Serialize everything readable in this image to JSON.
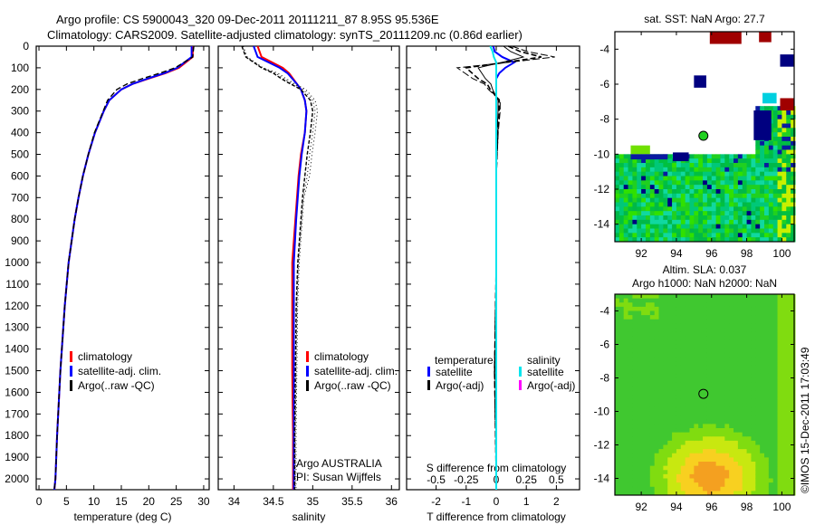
{
  "title_line1": "Argo profile: CS 5900043_320 09-Dec-2011 20111211_87 8.95S 95.536E",
  "title_line2": "Climatology: CARS2009. Satellite-adjusted climatology: synTS_20111209.nc (0.86d earlier)",
  "side_stamp": "©IMOS 15-Dec-2011 17:03:49",
  "colors": {
    "climatology": "#ff0000",
    "satellite": "#0000ff",
    "argo": "#000000",
    "sal_satellite": "#00e5ee",
    "sal_argo": "#ff00ff"
  },
  "chart_data": [
    {
      "type": "line",
      "xlabel": "temperature (deg C)",
      "xlim": [
        -0.5,
        31
      ],
      "xticks": [
        "0",
        "5",
        "10",
        "15",
        "20",
        "25",
        "30"
      ],
      "ylim": [
        2050,
        0
      ],
      "yticks": [
        "0",
        "100",
        "200",
        "300",
        "400",
        "500",
        "600",
        "700",
        "800",
        "900",
        "1000",
        "1100",
        "1200",
        "1300",
        "1400",
        "1500",
        "1600",
        "1700",
        "1800",
        "1900",
        "2000"
      ],
      "depth": [
        0,
        50,
        100,
        125,
        150,
        175,
        200,
        250,
        300,
        400,
        500,
        600,
        700,
        800,
        1000,
        1200,
        1500,
        1800,
        2000,
        2050
      ],
      "series": [
        {
          "name": "climatology",
          "values": [
            28,
            28,
            25.5,
            23,
            20,
            17,
            15,
            12.8,
            11.8,
            10.2,
            9,
            8,
            7.2,
            6.5,
            5.4,
            4.7,
            3.9,
            3.3,
            3.0,
            2.8
          ]
        },
        {
          "name": "satellite-adj. clim.",
          "values": [
            27.8,
            27.8,
            25.2,
            22.8,
            19.8,
            17,
            15,
            12.8,
            11.8,
            10.2,
            9,
            8,
            7.2,
            6.5,
            5.4,
            4.7,
            3.9,
            3.3,
            3.0,
            2.8
          ]
        },
        {
          "name": "Argo(..raw -QC)",
          "values": [
            28.2,
            28,
            24.8,
            22,
            18.8,
            16,
            14.2,
            12.5,
            11.7,
            10.1,
            9,
            8,
            7.2,
            6.5,
            5.4,
            4.7,
            3.9,
            3.3,
            3.0,
            2.8
          ]
        }
      ],
      "legend": [
        "climatology",
        "satellite-adj. clim.",
        "Argo(..raw -QC)"
      ]
    },
    {
      "type": "line",
      "xlabel": "salinity",
      "xlim": [
        33.8,
        36.1
      ],
      "xticks": [
        "34",
        "34.5",
        "35",
        "35.5",
        "36"
      ],
      "ylim": [
        2050,
        0
      ],
      "depth": [
        0,
        50,
        100,
        125,
        150,
        175,
        200,
        250,
        300,
        400,
        500,
        600,
        700,
        800,
        1000,
        1200,
        1500,
        1800,
        2000,
        2050
      ],
      "series": [
        {
          "name": "climatology",
          "values": [
            34.3,
            34.35,
            34.62,
            34.7,
            34.75,
            34.8,
            34.85,
            34.9,
            34.92,
            34.9,
            34.85,
            34.82,
            34.8,
            34.78,
            34.74,
            34.74,
            34.74,
            34.75,
            34.75,
            34.75
          ]
        },
        {
          "name": "satellite-adj. clim.",
          "values": [
            34.25,
            34.3,
            34.58,
            34.68,
            34.74,
            34.8,
            34.85,
            34.9,
            34.92,
            34.9,
            34.86,
            34.83,
            34.81,
            34.79,
            34.76,
            34.76,
            34.76,
            34.76,
            34.76,
            34.76
          ]
        },
        {
          "name": "Argo(..raw -QC)",
          "values": [
            34.1,
            34.15,
            34.35,
            34.5,
            34.6,
            34.72,
            34.85,
            34.97,
            35.0,
            34.97,
            34.93,
            34.9,
            34.87,
            34.85,
            34.81,
            34.79,
            34.78,
            34.77,
            34.77,
            34.77
          ]
        }
      ],
      "legend": [
        "climatology",
        "satellite-adj. clim.",
        "Argo(..raw -QC)"
      ],
      "annotation": [
        "Argo AUSTRALIA",
        "PI: Susan Wijffels"
      ]
    },
    {
      "type": "line",
      "xlabel": "T difference from climatology",
      "xlabel2": "S difference from climatology",
      "xlim": [
        -2.5,
        2.5
      ],
      "xticks": [
        "-2",
        "-1",
        "0",
        "1",
        "2"
      ],
      "xticks2": [
        "-0.5",
        "-0.25",
        "0",
        "0.25",
        "0.5"
      ],
      "ylim": [
        2050,
        0
      ],
      "depth": [
        0,
        25,
        50,
        75,
        100,
        125,
        150,
        175,
        200,
        250,
        300,
        400,
        600,
        800,
        1000,
        1500,
        2000,
        2050
      ],
      "series": [
        {
          "name": "temperature satellite",
          "values": [
            -0.1,
            -0.05,
            0.2,
            0.6,
            0.3,
            0.1,
            0,
            0,
            0,
            0,
            0,
            0,
            0,
            0,
            0,
            0,
            0,
            0
          ]
        },
        {
          "name": "temperature Argo(-adj)",
          "values": [
            0.4,
            0.8,
            1.5,
            0.3,
            -1.0,
            -0.8,
            -0.6,
            -0.3,
            -0.2,
            0.1,
            0.1,
            0.05,
            0,
            0,
            0,
            -0.05,
            0,
            0
          ]
        },
        {
          "name": "salinity satellite",
          "values": [
            -0.05,
            -0.03,
            -0.02,
            0,
            0,
            0,
            0,
            0,
            0,
            0,
            0,
            0,
            0,
            0,
            0,
            0,
            0,
            0
          ]
        },
        {
          "name": "salinity Argo(-adj)",
          "values": []
        }
      ],
      "legend_temperature": {
        "heading": "temperature",
        "items": [
          "satellite",
          "Argo(-adj)"
        ]
      },
      "legend_salinity": {
        "heading": "salinity",
        "items": [
          "satellite",
          "Argo(-adj)"
        ]
      }
    },
    {
      "type": "heatmap",
      "title": "sat. SST: NaN Argo: 27.7",
      "xticks": [
        "92",
        "94",
        "96",
        "98",
        "100"
      ],
      "yticks": [
        "-4",
        "-6",
        "-8",
        "-10",
        "-12",
        "-14"
      ],
      "xlim": [
        90.5,
        100.7
      ],
      "ylim": [
        -15,
        -3
      ],
      "profile_location": [
        95.536,
        -8.95
      ]
    },
    {
      "type": "heatmap",
      "title": "Altim. SLA: 0.037",
      "subtitle": "Argo h1000: NaN h2000: NaN",
      "xticks": [
        "92",
        "94",
        "96",
        "98",
        "100"
      ],
      "yticks": [
        "-4",
        "-6",
        "-8",
        "-10",
        "-12",
        "-14"
      ],
      "xlim": [
        90.5,
        100.7
      ],
      "ylim": [
        -15,
        -3
      ],
      "profile_location": [
        95.536,
        -8.95
      ]
    }
  ]
}
